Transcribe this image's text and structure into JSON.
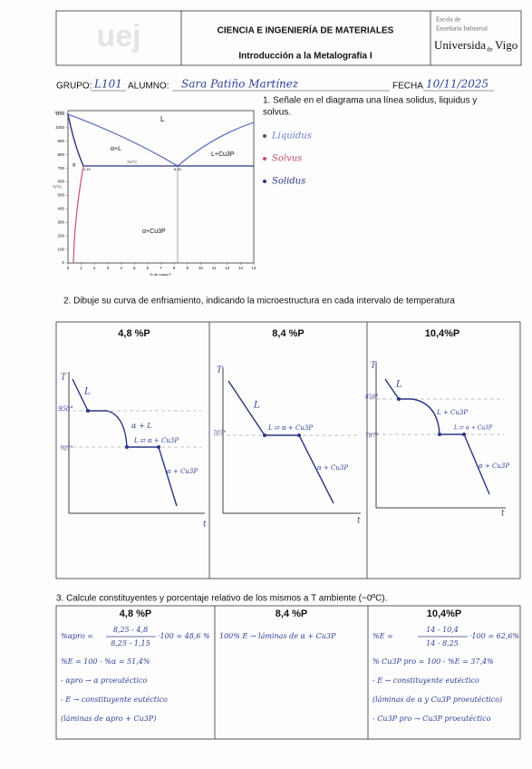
{
  "header": {
    "logo": "uej",
    "title": "CIENCIA E INGENIERÍA DE MATERIALES",
    "subtitle": "Introducción a la Metalografía I",
    "school_line1": "Escola de",
    "school_line2": "Enxeñaría Industrial",
    "university_a": "Universida",
    "university_b": "de",
    "university_c": "Vigo"
  },
  "student": {
    "group_label": "GRUPO:",
    "group": "L101",
    "name_label": "ALUMNO:",
    "name": "Sara Patiño Martínez",
    "date_label": "FECHA",
    "date": "10/11/2025"
  },
  "q1": {
    "text_line1": "1. Señale en el diagrama una línea solidus, liquidus y",
    "text_line2": "solvus.",
    "legend": [
      "Liquidus",
      "Solvus",
      "Solidus"
    ],
    "diagram": {
      "yticks": [
        "0",
        "100",
        "200",
        "300",
        "400",
        "500",
        "600",
        "700",
        "800",
        "900",
        "1000",
        "1100"
      ],
      "xticks": [
        "0",
        "1",
        "2",
        "3",
        "4",
        "5",
        "6",
        "7",
        "8",
        "9",
        "10",
        "11",
        "12",
        "13",
        "14"
      ],
      "top_temp": "1083°C",
      "y_label": "T(°C)",
      "x_label": "% de masa P",
      "region_l": "L",
      "region_al": "α+L",
      "region_lcu": "L+Cu3P",
      "region_a": "α",
      "region_acu": "α+Cu3P",
      "eutectic_temp": "707°C",
      "comp_a": "1,15",
      "comp_e": "8,25"
    }
  },
  "q2": {
    "title": "2.   Dibuje su curva de enfriamiento, indicando la microestructura en cada intervalo de temperatura",
    "panels": [
      {
        "heading": "4,8 %P",
        "t_axis": "T",
        "time_axis": "t",
        "labels": [
          "L",
          "950°",
          "α + L",
          "L ⇄ α + Cu3P",
          "707°",
          "α + Cu3P"
        ]
      },
      {
        "heading": "8,4 %P",
        "t_axis": "T",
        "time_axis": "t",
        "labels": [
          "L",
          "707°",
          "L ⇄ α + Cu3P",
          "α + Cu3P"
        ]
      },
      {
        "heading": "10,4%P",
        "t_axis": "T",
        "time_axis": "t",
        "labels": [
          "850°",
          "L",
          "L + Cu3P",
          "L ⇄ α + Cu3P",
          "707°",
          "α + Cu3P"
        ]
      }
    ]
  },
  "q3": {
    "title": "3.   Calcule constituyentes y porcentaje relativo de los mismos a T ambiente (~0ºC).",
    "columns": [
      {
        "heading": "4,8 %P",
        "formula": {
          "prefix": "%αpro =",
          "numerator": "8,25 - 4,8",
          "denominator": "8,25 - 1,15",
          "suffix": "·100 = 48,6 %"
        },
        "lines": [
          "%E = 100 - %α = 51,4%",
          "- αpro → α proeutéctico",
          "- E → constituyente eutéctico",
          "(láminas de αpro + Cu3P)"
        ]
      },
      {
        "heading": "8,4 %P",
        "lines": [
          "100% E → láminas de α + Cu3P"
        ]
      },
      {
        "heading": "10,4%P",
        "formula": {
          "prefix": "%E =",
          "numerator": "14 - 10,4",
          "denominator": "14 - 8,25",
          "suffix": "·100 = 62,6%"
        },
        "lines": [
          "% Cu3P pro = 100 - %E = 37,4%",
          "- E → constituyente eutéctico",
          "(láminas de α y Cu3P proeutéctico)",
          "- Cu3P pro → Cu3P proeutéctico"
        ]
      }
    ]
  }
}
